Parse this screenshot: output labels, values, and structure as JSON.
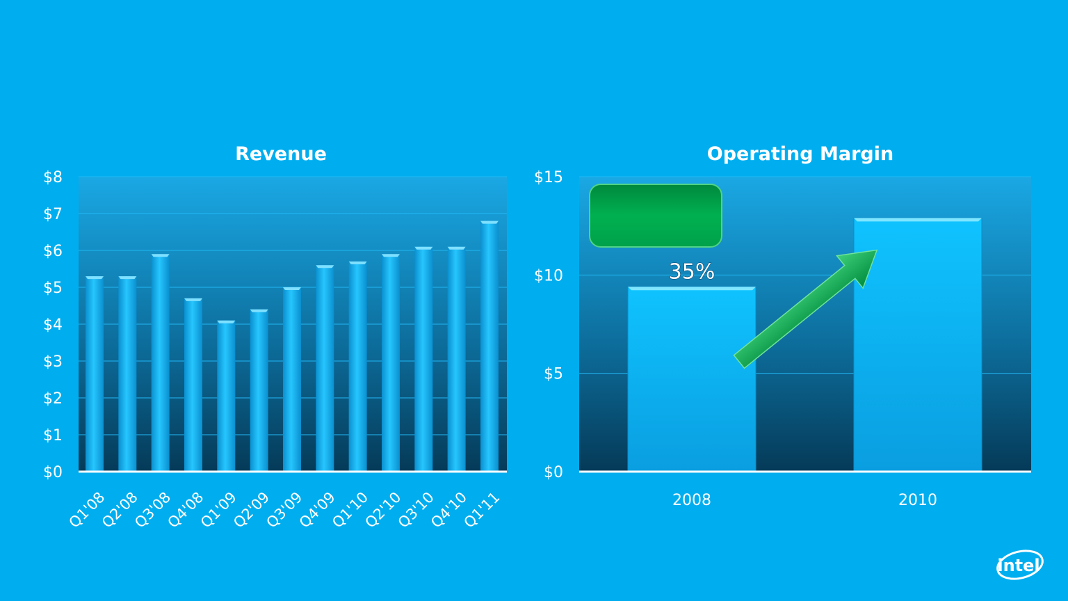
{
  "colors": {
    "background": "#00aeef",
    "plot_top": "#1aa8e4",
    "plot_bottom": "#063f5f",
    "bar_light": "#1ec8ff",
    "bar_dark": "#0a8fcf",
    "arrow": "#00b050",
    "badge": "#00a651",
    "text": "#ffffff"
  },
  "logo": {
    "text": "intel"
  },
  "chart_data": [
    {
      "type": "bar",
      "title": "Revenue",
      "categories": [
        "Q1'08",
        "Q2'08",
        "Q3'08",
        "Q4'08",
        "Q1'09",
        "Q2'09",
        "Q3'09",
        "Q4'09",
        "Q1'10",
        "Q2'10",
        "Q3'10",
        "Q4'10",
        "Q1'11"
      ],
      "values": [
        5.3,
        5.3,
        5.9,
        4.7,
        4.1,
        4.4,
        5.0,
        5.6,
        5.7,
        5.9,
        6.1,
        6.1,
        6.8
      ],
      "ylim": [
        0,
        8
      ],
      "yticks": [
        0,
        1,
        2,
        3,
        4,
        5,
        6,
        7,
        8
      ],
      "tick_labels": [
        "$0",
        "$1",
        "$2",
        "$3",
        "$4",
        "$5",
        "$6",
        "$7",
        "$8"
      ],
      "grid": true,
      "legend": "none"
    },
    {
      "type": "bar",
      "title": "Operating Margin",
      "categories": [
        "2008",
        "2010"
      ],
      "values": [
        9.4,
        12.9
      ],
      "data_labels": [
        "35%",
        ""
      ],
      "ylim": [
        0,
        15
      ],
      "yticks": [
        0,
        5,
        10,
        15
      ],
      "tick_labels": [
        "$0",
        "$5",
        "$10",
        "$15"
      ],
      "grid": true,
      "legend": "none",
      "annotation": {
        "type": "arrow",
        "from_category": "2008",
        "to_category": "2010",
        "badge_text": ""
      }
    }
  ]
}
